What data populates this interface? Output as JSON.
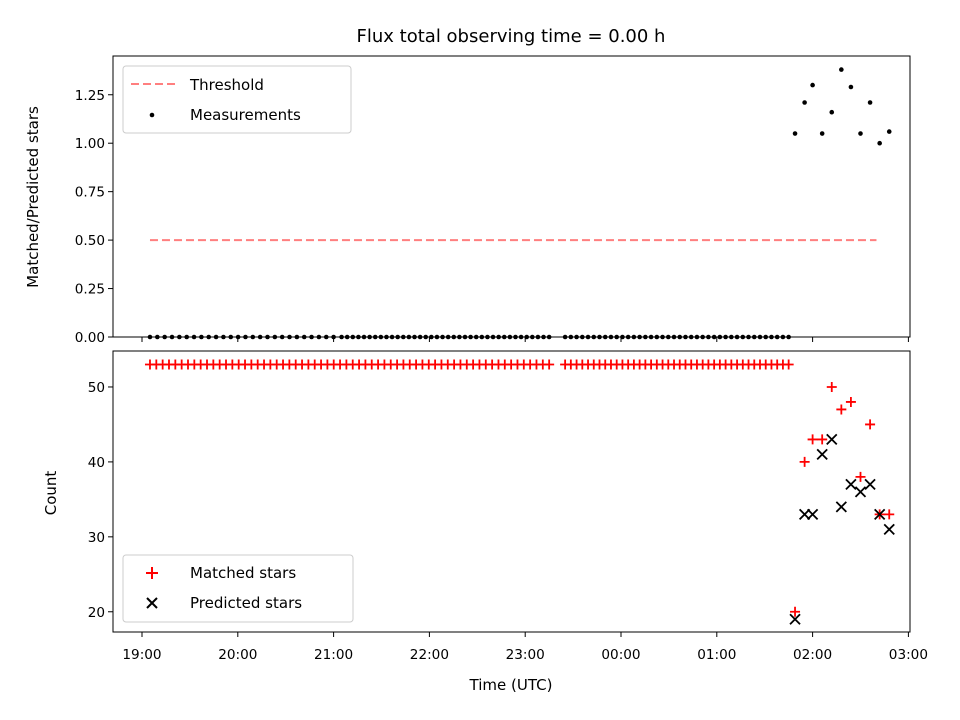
{
  "chart_data": {
    "type": "scatter",
    "title": "Flux total observing time = 0.00 h",
    "xlabel": "Time (UTC)",
    "x_ticks": [
      "19:00",
      "20:00",
      "21:00",
      "22:00",
      "23:00",
      "00:00",
      "01:00",
      "02:00",
      "03:00"
    ],
    "colors": {
      "threshold": "#ff7f7f",
      "measurements": "#000000",
      "matched": "#ff0000",
      "predicted": "#000000"
    },
    "panels": [
      {
        "ylabel": "Matched/Predicted stars",
        "ylim": [
          0.0,
          1.45
        ],
        "y_ticks": [
          0.0,
          0.25,
          0.5,
          0.75,
          1.0,
          1.25
        ],
        "y_tick_labels": [
          "0.00",
          "0.25",
          "0.50",
          "0.75",
          "1.00",
          "1.25"
        ],
        "legend": {
          "position": "top-left",
          "entries": [
            "Threshold",
            "Measurements"
          ]
        },
        "series": [
          {
            "name": "Threshold",
            "type": "line",
            "style": "dashed",
            "x": [
              "19:05",
              "02:40"
            ],
            "y": [
              0.5,
              0.5
            ]
          },
          {
            "name": "Measurements",
            "type": "scatter",
            "zero_run": [
              {
                "from": "19:05",
                "to": "21:00",
                "count": 26
              },
              {
                "from": "21:05",
                "to": "23:15",
                "count": 38
              },
              {
                "from": "23:25",
                "to": "01:45",
                "count": 40
              }
            ],
            "points": [
              {
                "x": "01:49",
                "y": 1.05
              },
              {
                "x": "01:55",
                "y": 1.21
              },
              {
                "x": "02:00",
                "y": 1.3
              },
              {
                "x": "02:06",
                "y": 1.05
              },
              {
                "x": "02:12",
                "y": 1.16
              },
              {
                "x": "02:18",
                "y": 1.38
              },
              {
                "x": "02:24",
                "y": 1.29
              },
              {
                "x": "02:30",
                "y": 1.05
              },
              {
                "x": "02:36",
                "y": 1.21
              },
              {
                "x": "02:42",
                "y": 1.0
              },
              {
                "x": "02:48",
                "y": 1.06
              }
            ]
          }
        ]
      },
      {
        "ylabel": "Count",
        "ylim": [
          17.3,
          54.8
        ],
        "y_ticks": [
          20,
          30,
          40,
          50
        ],
        "y_tick_labels": [
          "20",
          "30",
          "40",
          "50"
        ],
        "legend": {
          "position": "bottom-left",
          "entries": [
            "Matched stars",
            "Predicted stars"
          ]
        },
        "series": [
          {
            "name": "Matched stars",
            "type": "scatter",
            "constant_run": [
              {
                "from": "19:05",
                "to": "23:15",
                "count": 64,
                "y": 53
              },
              {
                "from": "23:25",
                "to": "01:45",
                "count": 40,
                "y": 53
              }
            ],
            "points": [
              {
                "x": "01:49",
                "y": 20
              },
              {
                "x": "01:55",
                "y": 40
              },
              {
                "x": "02:00",
                "y": 43
              },
              {
                "x": "02:06",
                "y": 43
              },
              {
                "x": "02:12",
                "y": 50
              },
              {
                "x": "02:18",
                "y": 47
              },
              {
                "x": "02:24",
                "y": 48
              },
              {
                "x": "02:30",
                "y": 38
              },
              {
                "x": "02:36",
                "y": 45
              },
              {
                "x": "02:42",
                "y": 33
              },
              {
                "x": "02:48",
                "y": 33
              }
            ]
          },
          {
            "name": "Predicted stars",
            "type": "scatter",
            "points": [
              {
                "x": "01:49",
                "y": 19
              },
              {
                "x": "01:55",
                "y": 33
              },
              {
                "x": "02:00",
                "y": 33
              },
              {
                "x": "02:06",
                "y": 41
              },
              {
                "x": "02:12",
                "y": 43
              },
              {
                "x": "02:18",
                "y": 34
              },
              {
                "x": "02:24",
                "y": 37
              },
              {
                "x": "02:30",
                "y": 36
              },
              {
                "x": "02:36",
                "y": 37
              },
              {
                "x": "02:42",
                "y": 33
              },
              {
                "x": "02:48",
                "y": 31
              }
            ]
          }
        ]
      }
    ]
  }
}
